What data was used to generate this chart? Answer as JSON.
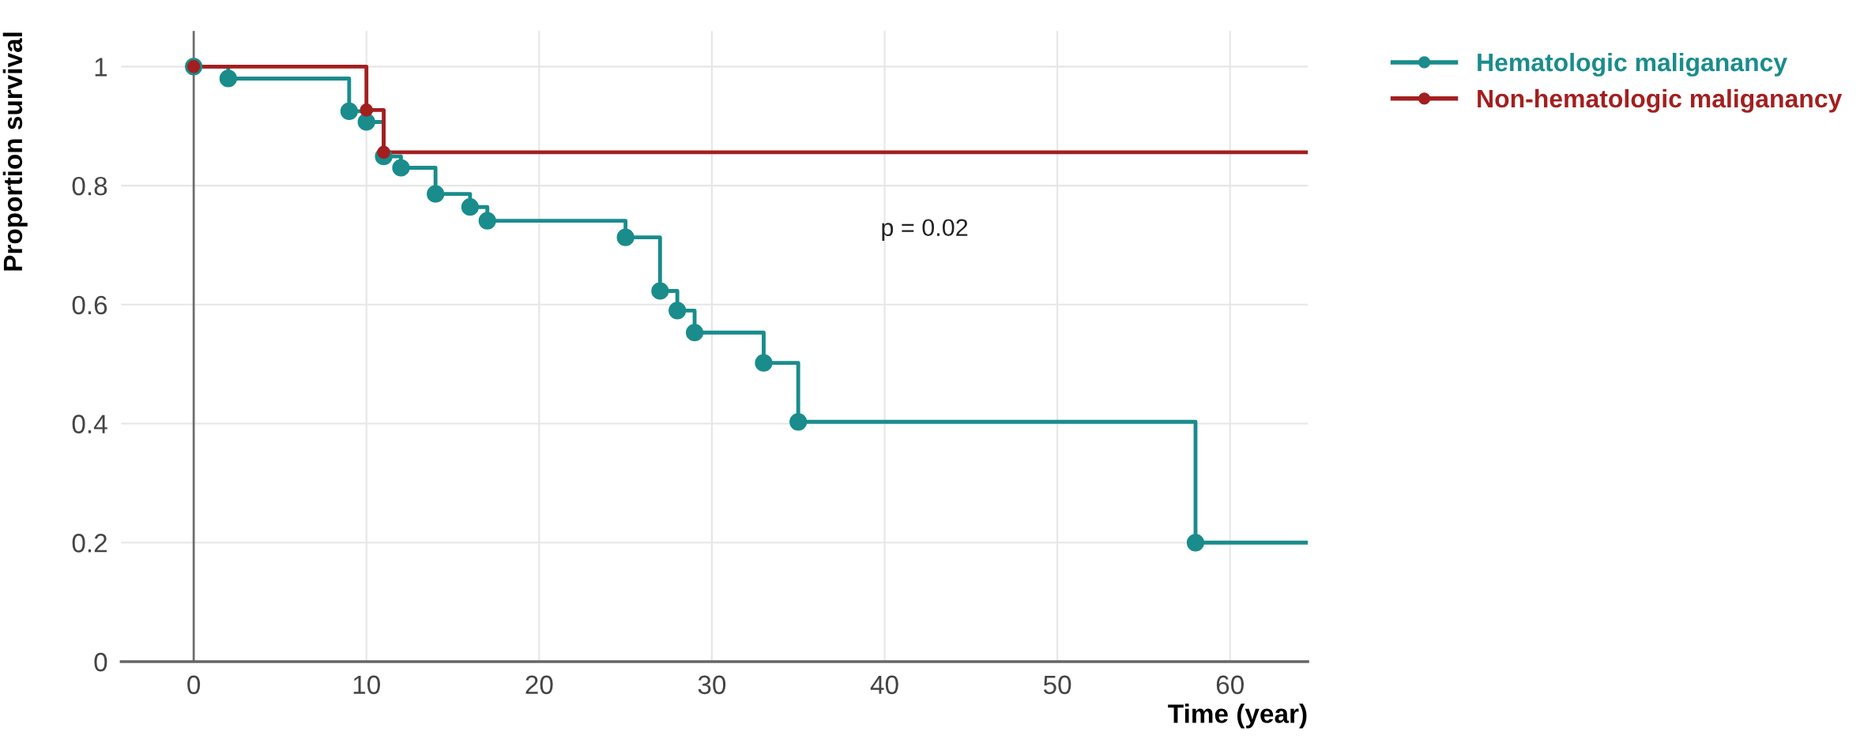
{
  "chart_data": {
    "type": "step",
    "xlabel": "Time (year)",
    "ylabel": "Proportion survival",
    "xlim": [
      -4.2,
      64.5
    ],
    "ylim": [
      0,
      1.06
    ],
    "xticks": [
      0,
      10,
      20,
      30,
      40,
      50,
      60
    ],
    "yticks": [
      0,
      0.2,
      0.4,
      0.6,
      0.8,
      1
    ],
    "grid": true,
    "legend": "top right",
    "marker": "circle",
    "ref_lines": [
      {
        "axis": "x",
        "value": 0,
        "color": "#6e6e6e"
      }
    ],
    "annotations": [
      "p = 0.02"
    ],
    "series": [
      {
        "name": "Hematologic maliganancy",
        "color": "#1a8c8c",
        "x": [
          0,
          2,
          9,
          10,
          11,
          12,
          14,
          16,
          17,
          25,
          27,
          28,
          29,
          33,
          35,
          58,
          64.5
        ],
        "values": [
          1,
          0.98,
          0.925,
          0.907,
          0.849,
          0.83,
          0.786,
          0.764,
          0.741,
          0.713,
          0.623,
          0.59,
          0.553,
          0.502,
          0.403,
          0.2,
          0.2
        ]
      },
      {
        "name": "Non-hematologic maliganancy",
        "color": "#a31f1f",
        "x": [
          0,
          10,
          11,
          64.5
        ],
        "values": [
          1,
          0.927,
          0.856,
          0.856
        ]
      }
    ]
  }
}
